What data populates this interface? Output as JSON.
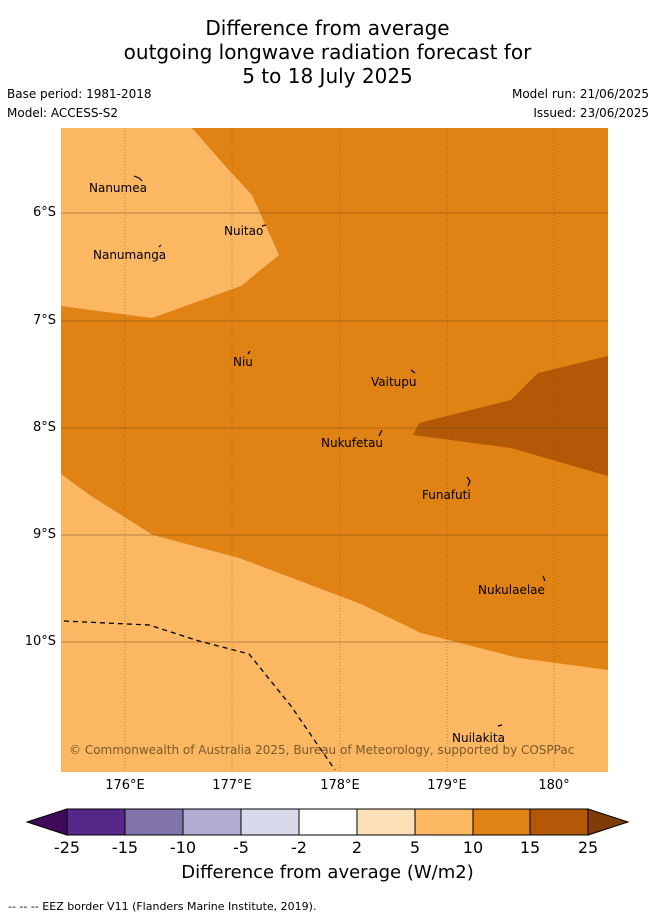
{
  "title_lines": [
    "Difference from average",
    "outgoing longwave radiation forecast for",
    "5 to 18 July 2025"
  ],
  "meta": {
    "base_period": "Base period: 1981-2018",
    "model": "Model: ACCESS-S2",
    "model_run": "Model run: 21/06/2025",
    "issued": "Issued: 23/06/2025"
  },
  "map": {
    "lat_ticks": [
      "6°S",
      "7°S",
      "8°S",
      "9°S",
      "10°S"
    ],
    "lon_ticks": [
      "176°E",
      "177°E",
      "178°E",
      "179°E",
      "180°"
    ],
    "places": [
      "Nanumea",
      "Nuitao",
      "Nanumanga",
      "Niu",
      "Vaitupu",
      "Nukufetau",
      "Funafuti",
      "Nukulaelae",
      "Nuilakita"
    ],
    "copyright": "© Commonwealth of Australia 2025, Bureau of Meteorology, supported by COSPPac",
    "colors": {
      "light_orange": "#fbb762",
      "mid_orange": "#e08214",
      "dark_orange": "#b35806"
    }
  },
  "colorbar": {
    "ticks": [
      "-25",
      "-15",
      "-10",
      "-5",
      "-2",
      "2",
      "5",
      "10",
      "15",
      "25"
    ],
    "colors": [
      "#3f0a5a",
      "#542788",
      "#8073ac",
      "#b2abd2",
      "#d8daeb",
      "#ffffff",
      "#fee0b6",
      "#fdb863",
      "#e08214",
      "#b35806",
      "#7f3b08"
    ],
    "label": "Difference from average (W/m2)"
  },
  "footer": "--  --  -- EEZ border V11 (Flanders Marine Institute, 2019)."
}
